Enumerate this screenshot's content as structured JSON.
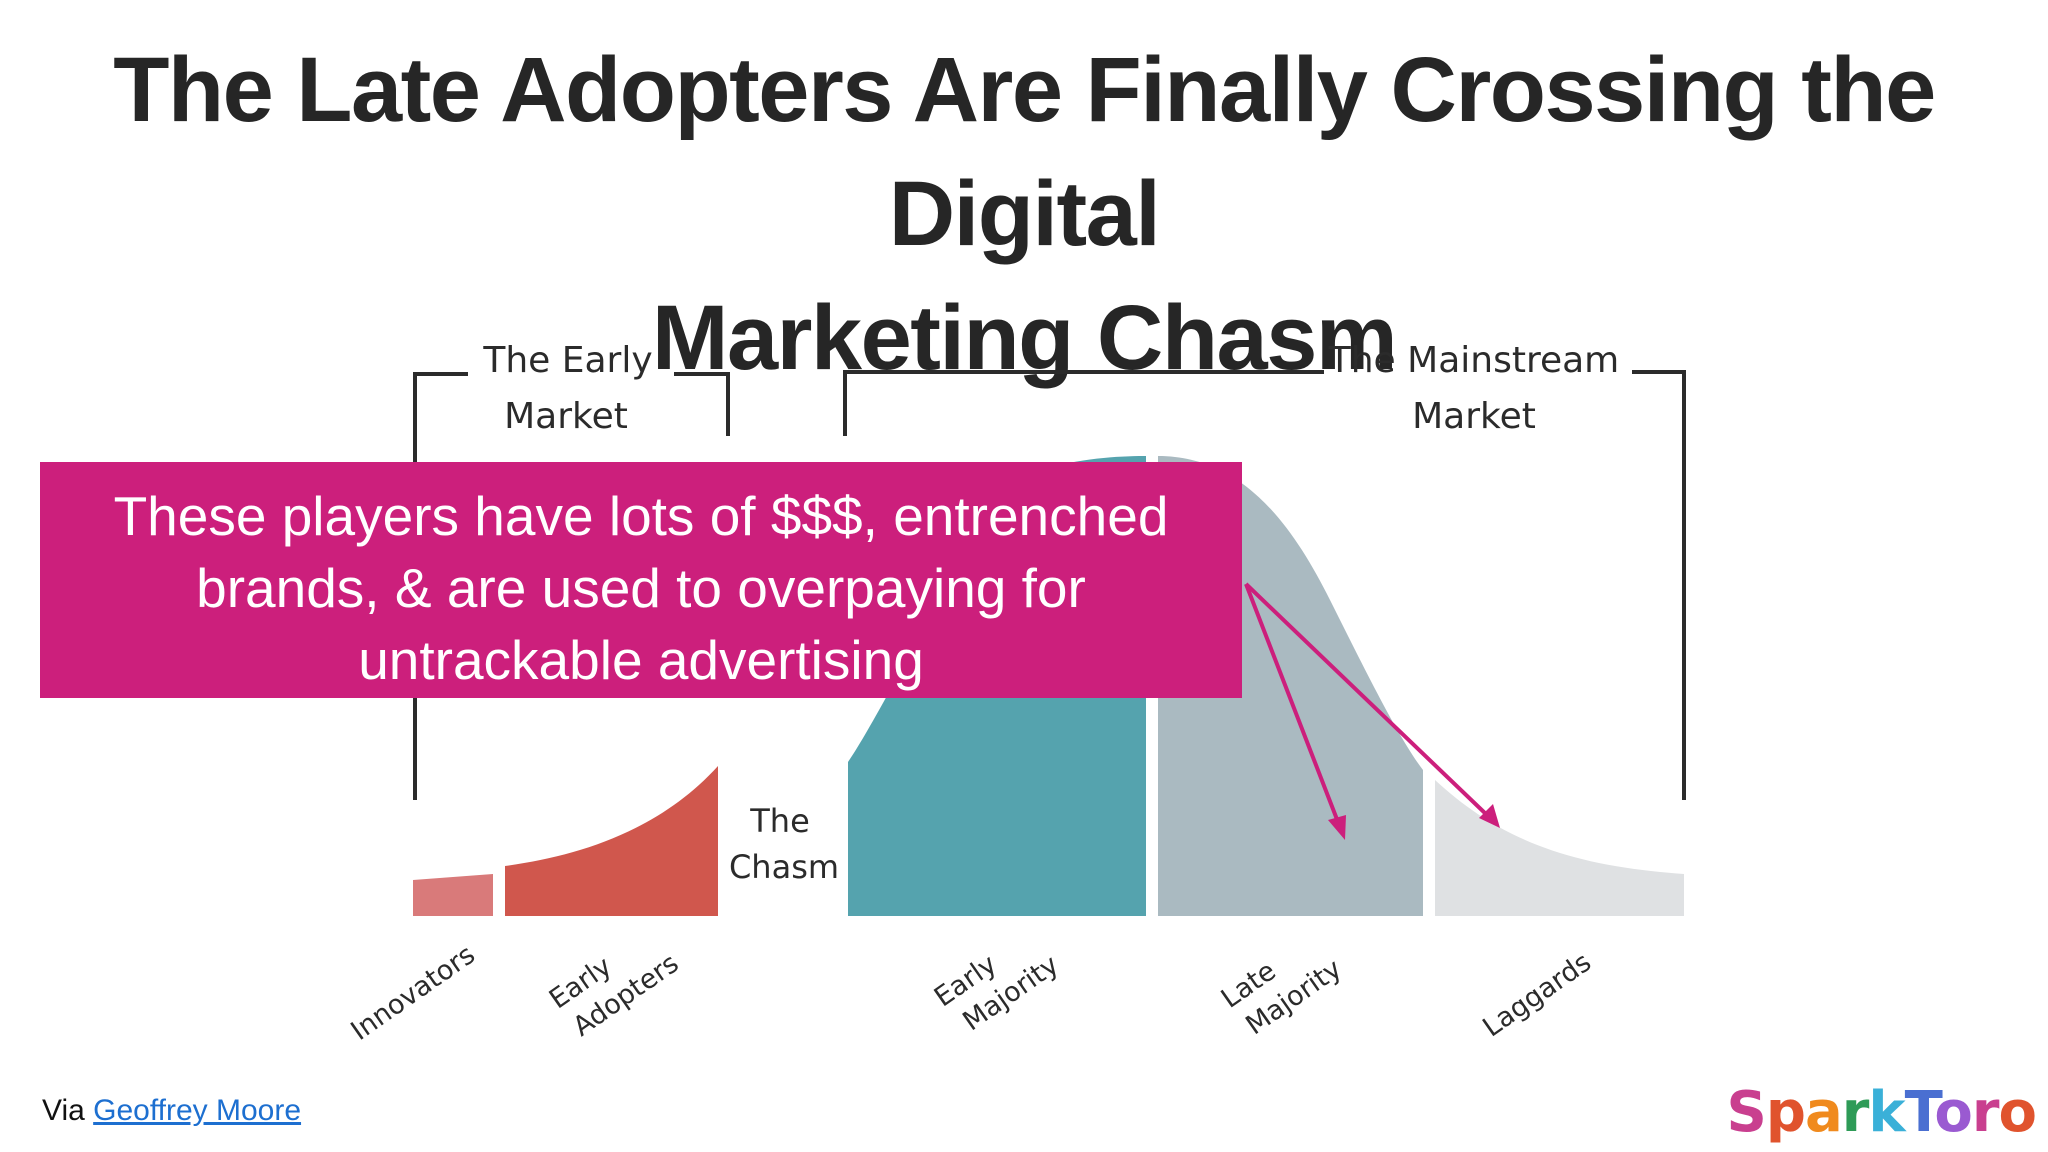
{
  "title": {
    "line1": "The Late Adopters Are Finally Crossing the Digital",
    "line2": "Marketing Chasm"
  },
  "diagram": {
    "early_market": {
      "line1": "The Early",
      "line2": "Market"
    },
    "mainstream_market": {
      "line1": "The Mainstream",
      "line2": "Market"
    },
    "chasm": {
      "line1": "The",
      "line2": "Chasm"
    },
    "segments": {
      "innovators": "Innovators",
      "early_adopters": {
        "line1": "Early",
        "line2": "Adopters"
      },
      "early_majority": {
        "line1": "Early",
        "line2": "Majority"
      },
      "late_majority": {
        "line1": "Late",
        "line2": "Majority"
      },
      "laggards": "Laggards"
    },
    "colors": {
      "innovators": "#d97a7a",
      "early_adopters": "#d0574d",
      "early_majority": "#55a3ae",
      "late_majority": "#aabac1",
      "laggards": "#dfe1e3",
      "callout": "#cc1f7c"
    }
  },
  "callout": {
    "line1": "These players have lots of $$$, entrenched",
    "line2": "brands, & are used to overpaying for",
    "line3": "untrackable advertising"
  },
  "credit": {
    "prefix": "Via ",
    "link_text": "Geoffrey Moore"
  },
  "logo": {
    "text": "SparkToro",
    "letter_colors": [
      "#c93f8f",
      "#e0532d",
      "#f08a1d",
      "#2e9b57",
      "#3ab0d8",
      "#4a6fd1",
      "#9a5ad1",
      "#c93f8f",
      "#e0532d"
    ]
  }
}
